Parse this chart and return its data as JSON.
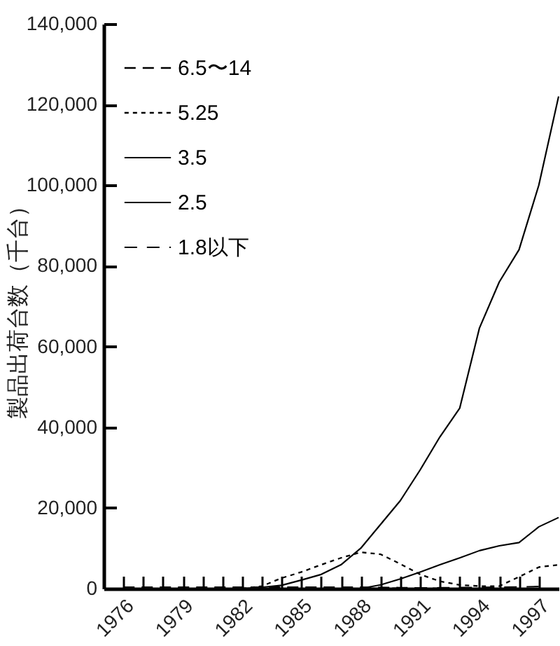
{
  "chart_data": {
    "type": "line",
    "ylabel": "製品出荷台数（千台）",
    "xlim": [
      1975,
      1998
    ],
    "ylim": [
      0,
      140000
    ],
    "xticks": [
      1976,
      {
        "value": 1977,
        "label": null
      },
      {
        "value": 1978,
        "label": null
      },
      1979,
      {
        "value": 1980,
        "label": null
      },
      {
        "value": 1981,
        "label": null
      },
      1982,
      {
        "value": 1983,
        "label": null
      },
      {
        "value": 1984,
        "label": null
      },
      1985,
      {
        "value": 1986,
        "label": null
      },
      {
        "value": 1987,
        "label": null
      },
      1988,
      {
        "value": 1989,
        "label": null
      },
      {
        "value": 1990,
        "label": null
      },
      1991,
      {
        "value": 1992,
        "label": null
      },
      {
        "value": 1993,
        "label": null
      },
      1994,
      {
        "value": 1995,
        "label": null
      },
      {
        "value": 1996,
        "label": null
      },
      1997
    ],
    "yticks": [
      0,
      {
        "value": 20000,
        "label": "20,000"
      },
      {
        "value": 40000,
        "label": "40,000"
      },
      {
        "value": 60000,
        "label": "60,000"
      },
      {
        "value": 80000,
        "label": "80,000"
      },
      {
        "value": 100000,
        "label": "100,000"
      },
      {
        "value": 120000,
        "label": "120,000"
      },
      {
        "value": 140000,
        "label": "140,000"
      }
    ],
    "legend": "top left",
    "grid": false,
    "marker": "none",
    "series": [
      {
        "name": "6.5〜14",
        "color": "#000000",
        "line_style": "dashed",
        "x": [
          1976,
          1978,
          1980,
          1982,
          1984,
          1986,
          1988,
          1990,
          1992
        ],
        "values": [
          300,
          300,
          300,
          300,
          300,
          300,
          300,
          200,
          0
        ]
      },
      {
        "name": "5.25",
        "color": "#000000",
        "line_style": "dotted",
        "x": [
          1982,
          1983,
          1984,
          1985,
          1986,
          1987,
          1988,
          1989,
          1990,
          1991,
          1992,
          1993,
          1994,
          1995,
          1996,
          1997,
          1998
        ],
        "values": [
          0,
          600,
          2600,
          4100,
          5900,
          7600,
          9000,
          8500,
          6100,
          3500,
          1800,
          900,
          600,
          600,
          2900,
          5300,
          5900
        ]
      },
      {
        "name": "3.5",
        "color": "#000000",
        "line_style": "solid",
        "x": [
          1982,
          1983,
          1984,
          1985,
          1986,
          1987,
          1988,
          1989,
          1990,
          1991,
          1992,
          1993,
          1994,
          1995,
          1996,
          1997,
          1998
        ],
        "values": [
          0,
          300,
          800,
          2100,
          3500,
          5900,
          10000,
          15900,
          21800,
          29400,
          37600,
          44700,
          64600,
          76000,
          84000,
          100000,
          122000
        ]
      },
      {
        "name": "2.5",
        "color": "#000000",
        "line_style": "solid",
        "x": [
          1987,
          1988,
          1989,
          1990,
          1991,
          1992,
          1993,
          1994,
          1995,
          1996,
          1997,
          1998
        ],
        "values": [
          0,
          0,
          900,
          2400,
          4100,
          5900,
          7600,
          9400,
          10600,
          11400,
          15300,
          17600
        ]
      },
      {
        "name": "1.8以下",
        "color": "#000000",
        "line_style": "dashed",
        "x": [
          1976,
          1980,
          1984,
          1988,
          1992,
          1994,
          1996,
          1997
        ],
        "values": [
          0,
          0,
          0,
          0,
          200,
          300,
          400,
          500
        ]
      }
    ]
  }
}
